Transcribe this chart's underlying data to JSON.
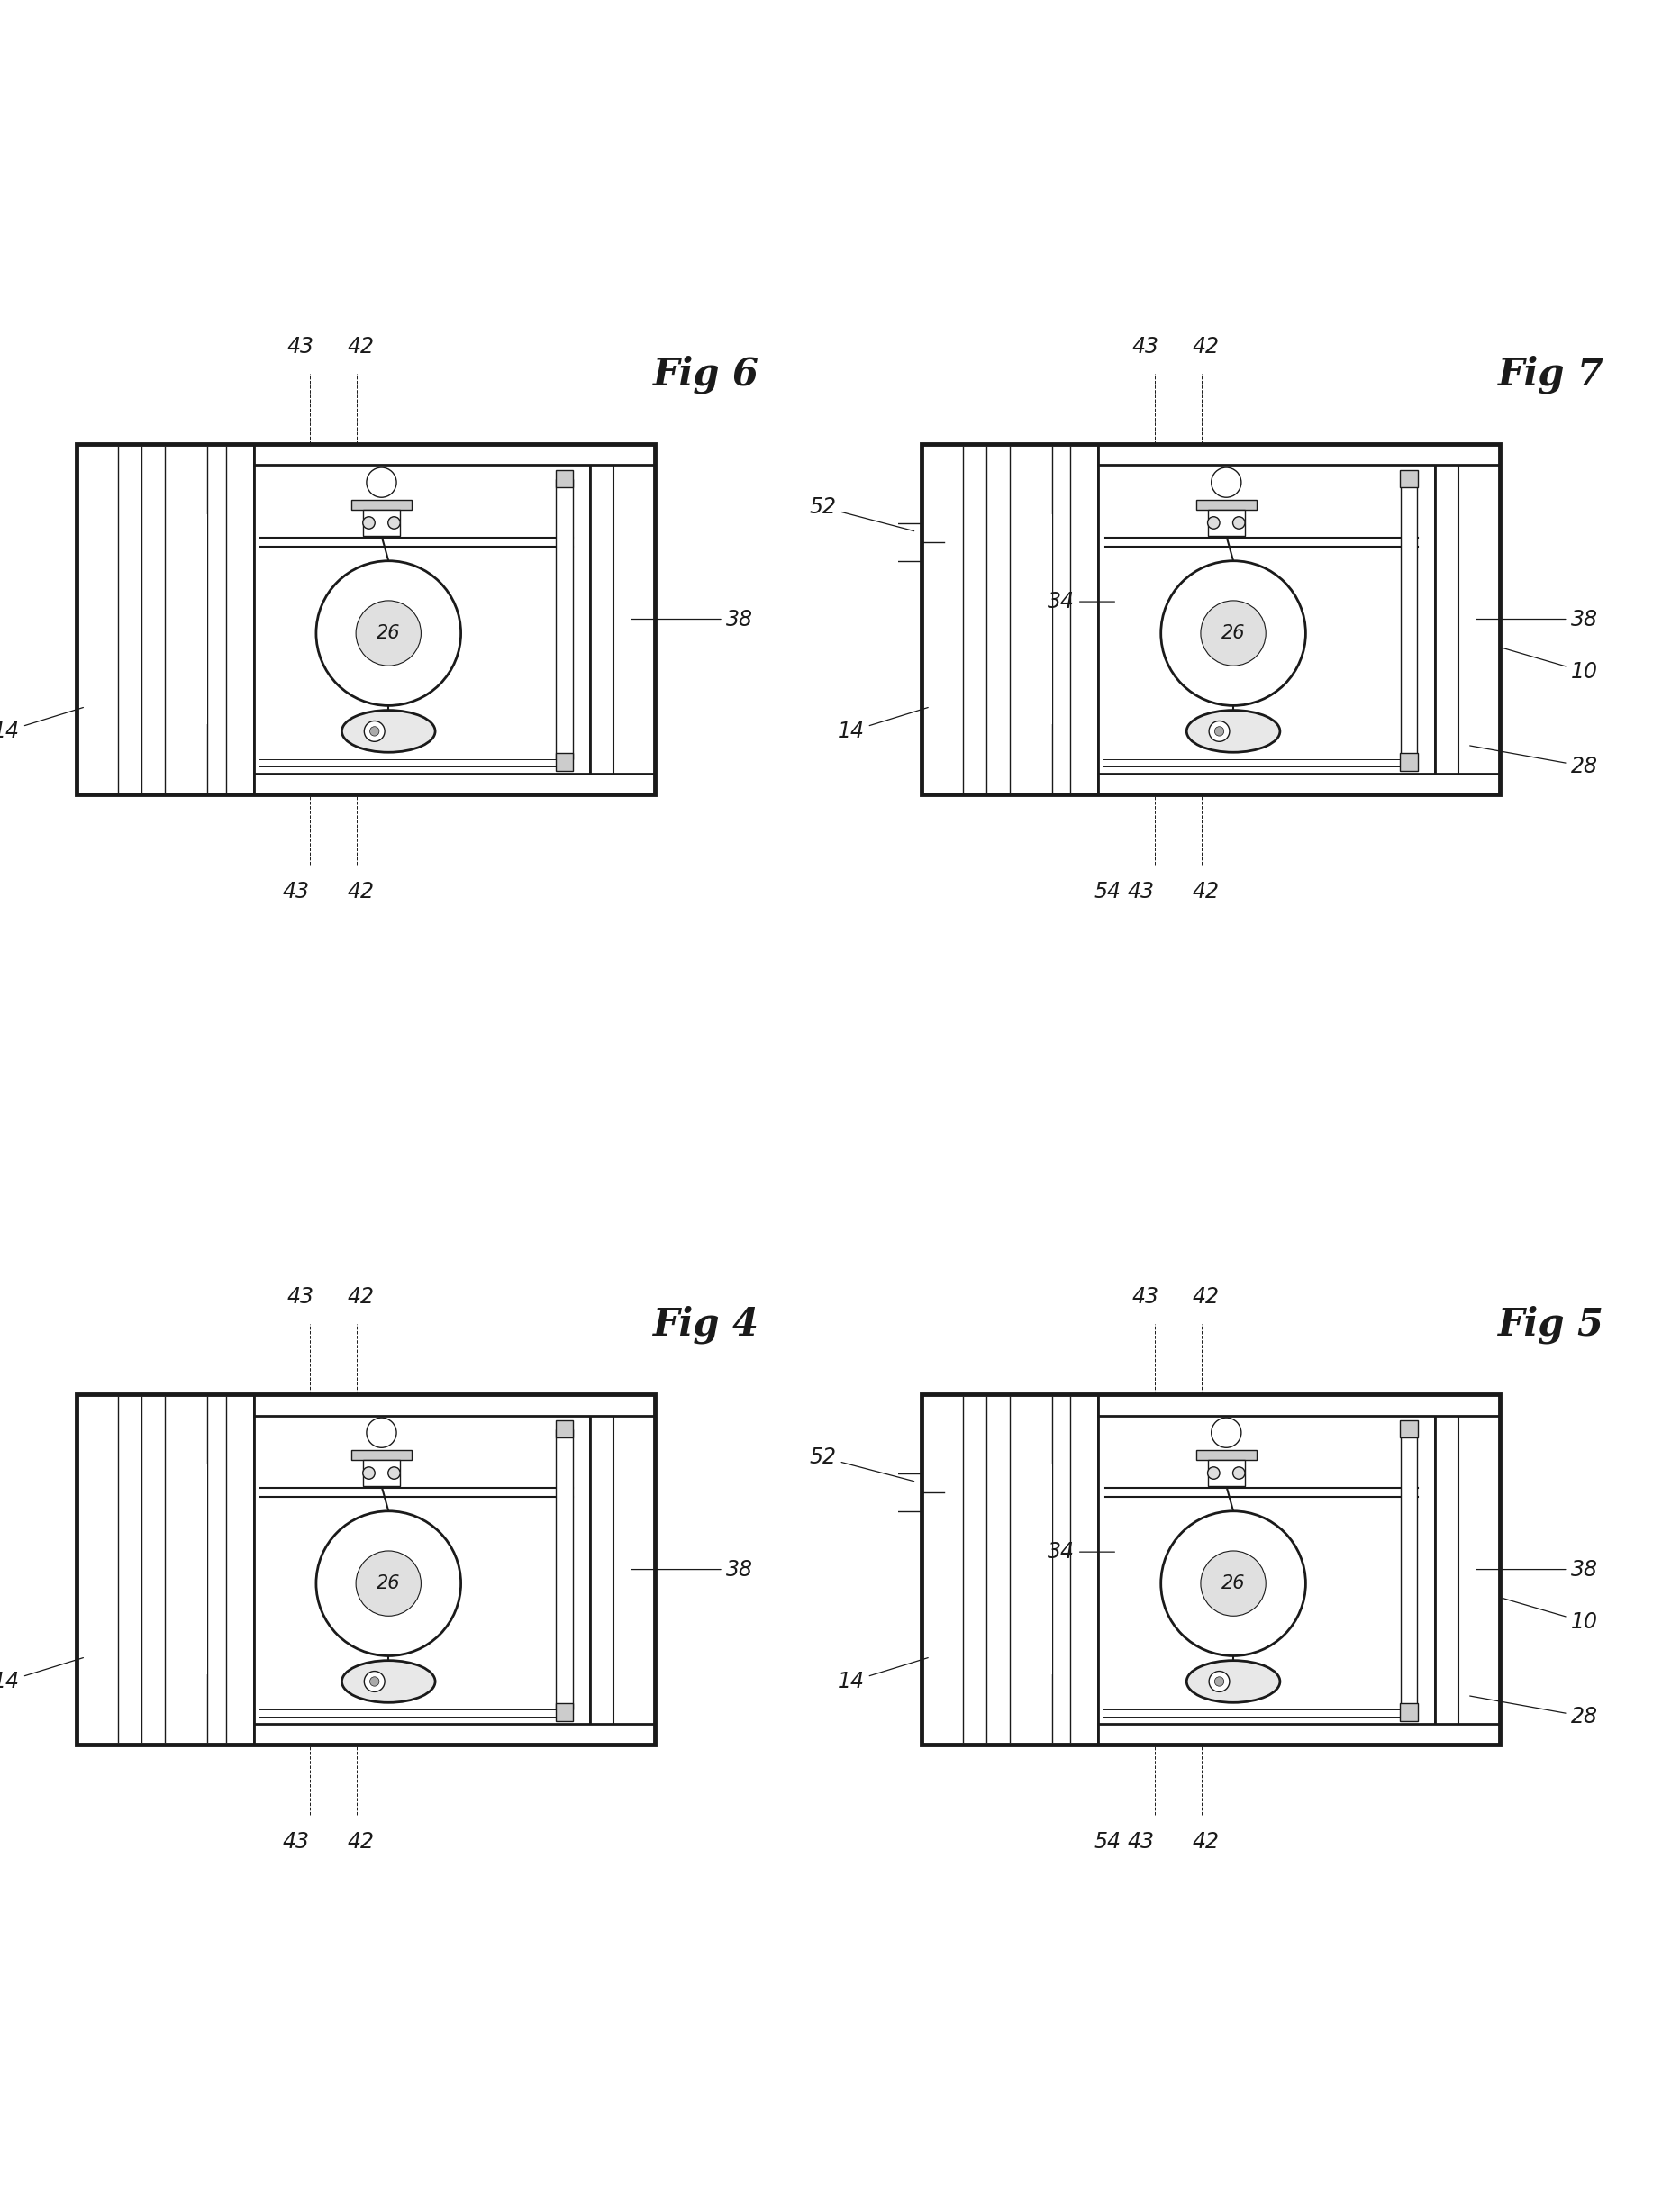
{
  "background_color": "#ffffff",
  "line_color": "#1a1a1a",
  "fig_label_fontsize": 30,
  "annotation_fontsize": 17,
  "panels": [
    {
      "label": "Fig 6",
      "row": 0,
      "col": 0,
      "variant": 0
    },
    {
      "label": "Fig 7",
      "row": 0,
      "col": 1,
      "variant": 1
    },
    {
      "label": "Fig 4",
      "row": 1,
      "col": 0,
      "variant": 0
    },
    {
      "label": "Fig 5",
      "row": 1,
      "col": 1,
      "variant": 1
    }
  ]
}
